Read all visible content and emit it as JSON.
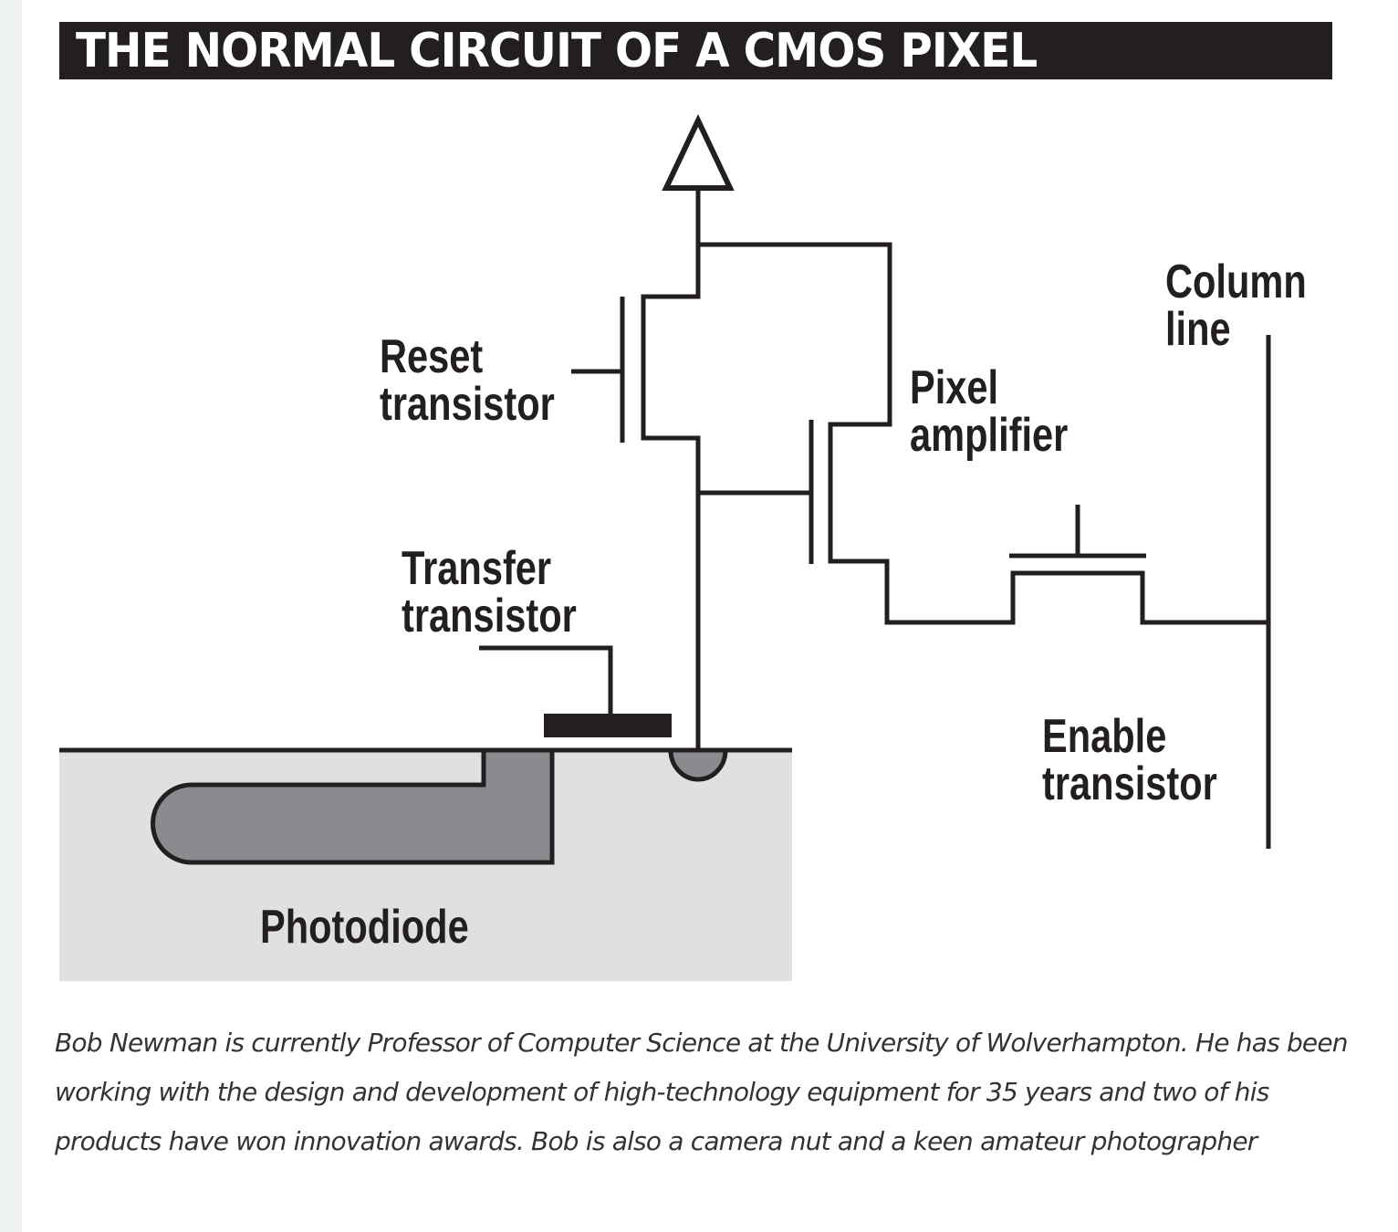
{
  "title": "THE NORMAL CIRCUIT OF A CMOS PIXEL",
  "labels": {
    "reset": [
      "Reset",
      "transistor"
    ],
    "transfer": [
      "Transfer",
      "transistor"
    ],
    "amplifier": [
      "Pixel",
      "amplifier"
    ],
    "column": [
      "Column",
      "line"
    ],
    "enable": [
      "Enable",
      "transistor"
    ],
    "photodiode": "Photodiode"
  },
  "caption": "Bob Newman is currently Professor of Computer Science at the University of Wolverhampton. He has been working with the design and development of high-technology equipment for 35 years and two of his products have won innovation awards. Bob is also a camera nut and a keen amateur photographer",
  "colors": {
    "ink": "#231f20",
    "substrate": "#e0e0e0",
    "diffusion": "#8a8b8e",
    "sidebar": "#edf1f2"
  }
}
